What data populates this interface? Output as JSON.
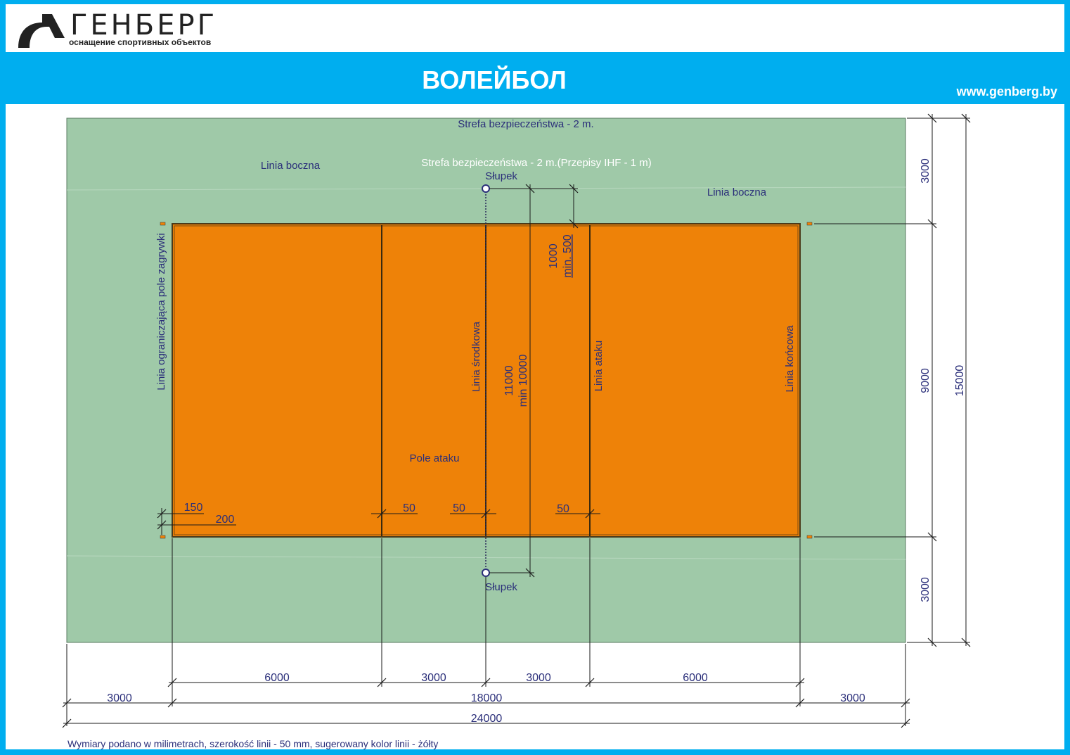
{
  "brand": {
    "name": "ГЕНБЕРГ",
    "tagline": "оснащение спортивных объектов",
    "logo_icon": "genberg-logo-icon"
  },
  "banner": {
    "title": "ВОЛЕЙБОЛ",
    "url": "www.genberg.by"
  },
  "colors": {
    "accent": "#00aeef",
    "safety_zone": "#9fc9a8",
    "court": "#ee8208",
    "label_text": "#2b2f7a",
    "dim_line": "#1a1a1a"
  },
  "labels": {
    "safety_zone_outer": "Strefa bezpieczeństwa - 2 m.",
    "safety_zone_inner": "Strefa bezpieczeństwa - 2 m.(Przepisy IHF - 1 m)",
    "side_line_left": "Linia boczna",
    "side_line_right": "Linia boczna",
    "post_top": "Słupek",
    "post_bottom": "Słupek",
    "service_zone_line": "Linia ograniczająca pole zagrywki",
    "center_line": "Linia środkowa",
    "attack_line": "Linia ataku",
    "end_line": "Linia końcowa",
    "attack_zone": "Pole ataku"
  },
  "dimensions": {
    "top_band": "3000",
    "court_width": "9000",
    "bottom_band": "3000",
    "total_width": "15000",
    "post_offset": "1000",
    "post_offset_min": "min. 500",
    "net_length": "11000",
    "net_length_min": "min 10000",
    "marker_150": "150",
    "marker_200": "200",
    "line_50_a": "50",
    "line_50_b": "50",
    "line_50_c": "50",
    "seg_6000_left": "6000",
    "seg_3000_left": "3000",
    "seg_3000_right": "3000",
    "seg_6000_right": "6000",
    "end_zone_left": "3000",
    "court_length": "18000",
    "end_zone_right": "3000",
    "total_length": "24000"
  },
  "footnote": "Wymiary podano w milimetrach, szerokość linii - 50 mm, sugerowany kolor linii - żółty"
}
